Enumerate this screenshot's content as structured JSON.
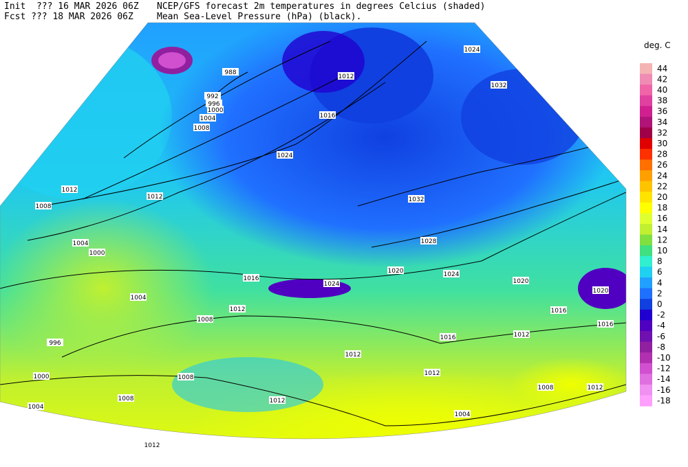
{
  "header": {
    "init": "Init  ??? 16 MAR 2026 06Z",
    "fcst": "Fcst ??? 18 MAR 2026 06Z",
    "title": "NCEP/GFS forecast 2m temperatures in degrees Celcius (shaded)",
    "subtitle": "Mean Sea-Level Pressure (hPa) (black)."
  },
  "legend": {
    "title": "deg. C",
    "levels": [
      "44",
      "42",
      "40",
      "38",
      "36",
      "34",
      "32",
      "30",
      "28",
      "26",
      "24",
      "22",
      "20",
      "18",
      "16",
      "14",
      "12",
      "10",
      "8",
      "6",
      "4",
      "2",
      "0",
      "-2",
      "-4",
      "-6",
      "-8",
      "-10",
      "-12",
      "-14",
      "-16",
      "-18"
    ],
    "colors": [
      "#f4b4b4",
      "#f08cb4",
      "#f064a8",
      "#e040a0",
      "#d02090",
      "#b01478",
      "#a00048",
      "#e00000",
      "#ff3000",
      "#ff7000",
      "#ffa000",
      "#ffc400",
      "#ffe400",
      "#ffff00",
      "#e0ff30",
      "#c0f030",
      "#80e040",
      "#40e080",
      "#30f0d0",
      "#20d0f0",
      "#20a0ff",
      "#2070ff",
      "#1040e0",
      "#2000d0",
      "#5000c0",
      "#7010b0",
      "#9020a0",
      "#b030b0",
      "#d050d0",
      "#e070e0",
      "#f090f0",
      "#ffa0ff"
    ]
  },
  "isobar_labels": [
    "988",
    "992",
    "996",
    "1000",
    "1004",
    "1008",
    "1012",
    "1008",
    "1004",
    "1000",
    "1004",
    "996",
    "1000",
    "1004",
    "1008",
    "1008",
    "1008",
    "1012",
    "1016",
    "1012",
    "1016",
    "1024",
    "1032",
    "1024",
    "1032",
    "1028",
    "1020",
    "1024",
    "1024",
    "1020",
    "1016",
    "1016",
    "1020",
    "1012",
    "1016",
    "1012",
    "1012",
    "1008",
    "1012",
    "1004",
    "1012",
    "1012",
    "1012"
  ]
}
